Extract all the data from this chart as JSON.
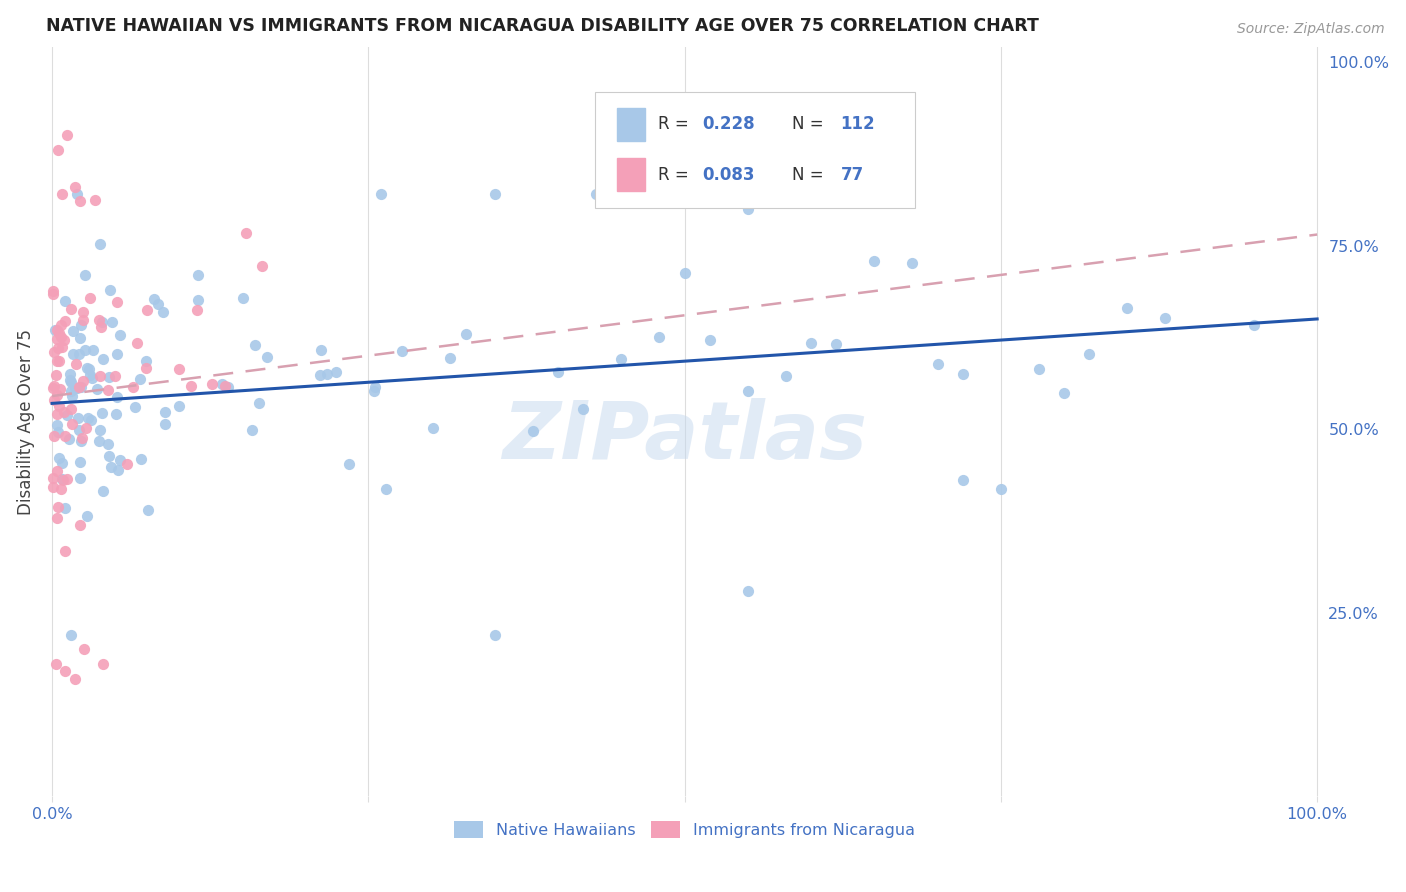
{
  "title": "NATIVE HAWAIIAN VS IMMIGRANTS FROM NICARAGUA DISABILITY AGE OVER 75 CORRELATION CHART",
  "source": "Source: ZipAtlas.com",
  "ylabel": "Disability Age Over 75",
  "color_blue": "#a8c8e8",
  "color_pink": "#f4a0b8",
  "color_blue_text": "#4472c4",
  "trendline_blue": "#2255aa",
  "trendline_pink": "#d8a0b0",
  "background_color": "#ffffff",
  "watermark": "ZIPatlas",
  "legend_r1": "0.228",
  "legend_n1": "112",
  "legend_r2": "0.083",
  "legend_n2": "77"
}
